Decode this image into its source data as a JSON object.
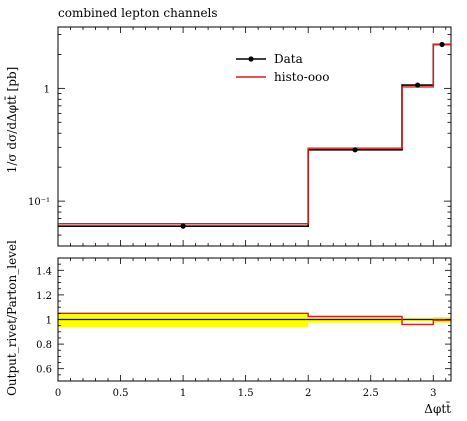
{
  "chart_data": [
    {
      "type": "line",
      "title": "combined lepton channels",
      "ylabel": "1/σ dσ/dΔφtt̄ [pb]",
      "y_scale": "log",
      "ylim": [
        0.04,
        3.5
      ],
      "xlim": [
        0,
        3.1416
      ],
      "y_ticks": [
        {
          "value": 0.1,
          "label": "10⁻¹"
        },
        {
          "value": 1,
          "label": "1"
        }
      ],
      "legend": {
        "placement": "top-right"
      },
      "bin_edges": [
        0,
        2.0,
        2.75,
        3.0,
        3.1416
      ],
      "series": [
        {
          "name": "Data",
          "marker": "dot",
          "color": "#000000",
          "x": [
            1.0,
            2.375,
            2.875,
            3.07
          ],
          "values": [
            0.06,
            0.285,
            1.07,
            2.45
          ]
        },
        {
          "name": "histo-ooo",
          "color": "#e41a1c",
          "values": [
            0.063,
            0.295,
            1.03,
            2.45
          ]
        }
      ]
    },
    {
      "type": "line",
      "ylabel": "Output_rivet/Parton_level",
      "xlabel": "Δφtt̄",
      "xlim": [
        0,
        3.1416
      ],
      "ylim": [
        0.5,
        1.5
      ],
      "x_ticks": [
        "0",
        "0.5",
        "1",
        "1.5",
        "2",
        "2.5",
        "3"
      ],
      "y_ticks": [
        "0.6",
        "0.8",
        "1",
        "1.2",
        "1.4"
      ],
      "band_color": "#ffff00",
      "bin_edges": [
        0,
        2.0,
        2.75,
        3.0,
        3.1416
      ],
      "band": {
        "low": [
          0.94,
          0.975,
          0.99,
          0.975
        ],
        "high": [
          1.05,
          1.03,
          1.015,
          1.02
        ]
      },
      "series": [
        {
          "name": "Data",
          "color": "#000000",
          "values": [
            1.0,
            1.0,
            1.0,
            1.0
          ]
        },
        {
          "name": "histo-ooo",
          "color": "#e41a1c",
          "values": [
            1.05,
            1.025,
            0.96,
            0.995
          ]
        }
      ]
    }
  ]
}
